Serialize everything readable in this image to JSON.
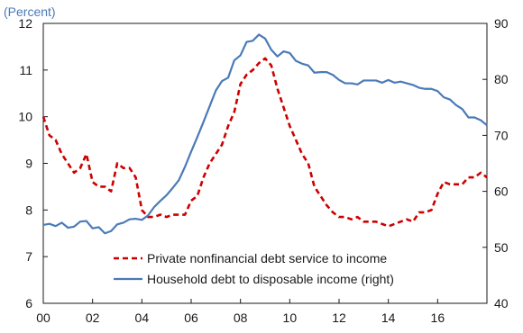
{
  "chart_data": {
    "type": "line",
    "unit_label": "(Percent)",
    "x_range": [
      2000,
      2018
    ],
    "x_ticks": [
      {
        "value": 2000,
        "label": "00"
      },
      {
        "value": 2002,
        "label": "02"
      },
      {
        "value": 2004,
        "label": "04"
      },
      {
        "value": 2006,
        "label": "06"
      },
      {
        "value": 2008,
        "label": "08"
      },
      {
        "value": 2010,
        "label": "10"
      },
      {
        "value": 2012,
        "label": "12"
      },
      {
        "value": 2014,
        "label": "14"
      },
      {
        "value": 2016,
        "label": "16"
      }
    ],
    "y_left": {
      "range": [
        6,
        12
      ],
      "ticks": [
        "6",
        "7",
        "8",
        "9",
        "10",
        "11",
        "12"
      ]
    },
    "y_right": {
      "range": [
        40,
        90
      ],
      "ticks": [
        "40",
        "50",
        "60",
        "70",
        "80",
        "90"
      ]
    },
    "legend": {
      "position": "bottom-center"
    },
    "grid": false,
    "series": [
      {
        "name": "Private nonfinancial debt service to income",
        "axis": "left",
        "color": "#cc0000",
        "style": "dashed",
        "points": [
          [
            2000.0,
            10.0
          ],
          [
            2000.25,
            9.6
          ],
          [
            2000.5,
            9.5
          ],
          [
            2000.75,
            9.2
          ],
          [
            2001.0,
            9.0
          ],
          [
            2001.25,
            8.8
          ],
          [
            2001.5,
            8.9
          ],
          [
            2001.75,
            9.2
          ],
          [
            2002.0,
            8.6
          ],
          [
            2002.25,
            8.5
          ],
          [
            2002.5,
            8.5
          ],
          [
            2002.75,
            8.4
          ],
          [
            2003.0,
            9.0
          ],
          [
            2003.25,
            8.9
          ],
          [
            2003.5,
            8.9
          ],
          [
            2003.75,
            8.7
          ],
          [
            2004.0,
            8.0
          ],
          [
            2004.25,
            7.85
          ],
          [
            2004.5,
            7.85
          ],
          [
            2004.75,
            7.9
          ],
          [
            2005.0,
            7.85
          ],
          [
            2005.25,
            7.9
          ],
          [
            2005.5,
            7.9
          ],
          [
            2005.75,
            7.9
          ],
          [
            2006.0,
            8.2
          ],
          [
            2006.25,
            8.3
          ],
          [
            2006.5,
            8.7
          ],
          [
            2006.75,
            9.0
          ],
          [
            2007.0,
            9.2
          ],
          [
            2007.25,
            9.4
          ],
          [
            2007.5,
            9.8
          ],
          [
            2007.75,
            10.1
          ],
          [
            2008.0,
            10.7
          ],
          [
            2008.25,
            10.9
          ],
          [
            2008.5,
            11.0
          ],
          [
            2008.75,
            11.15
          ],
          [
            2009.0,
            11.25
          ],
          [
            2009.25,
            11.1
          ],
          [
            2009.5,
            10.6
          ],
          [
            2009.75,
            10.2
          ],
          [
            2010.0,
            9.8
          ],
          [
            2010.25,
            9.5
          ],
          [
            2010.5,
            9.2
          ],
          [
            2010.75,
            9.0
          ],
          [
            2011.0,
            8.5
          ],
          [
            2011.25,
            8.3
          ],
          [
            2011.5,
            8.1
          ],
          [
            2011.75,
            7.95
          ],
          [
            2012.0,
            7.85
          ],
          [
            2012.25,
            7.85
          ],
          [
            2012.5,
            7.8
          ],
          [
            2012.75,
            7.85
          ],
          [
            2013.0,
            7.75
          ],
          [
            2013.25,
            7.75
          ],
          [
            2013.5,
            7.75
          ],
          [
            2013.75,
            7.7
          ],
          [
            2014.0,
            7.65
          ],
          [
            2014.25,
            7.7
          ],
          [
            2014.5,
            7.75
          ],
          [
            2014.75,
            7.8
          ],
          [
            2015.0,
            7.75
          ],
          [
            2015.25,
            7.95
          ],
          [
            2015.5,
            7.95
          ],
          [
            2015.75,
            8.0
          ],
          [
            2016.0,
            8.35
          ],
          [
            2016.25,
            8.6
          ],
          [
            2016.5,
            8.55
          ],
          [
            2016.75,
            8.55
          ],
          [
            2017.0,
            8.55
          ],
          [
            2017.25,
            8.7
          ],
          [
            2017.5,
            8.7
          ],
          [
            2017.75,
            8.8
          ],
          [
            2018.0,
            8.7
          ]
        ]
      },
      {
        "name": "Household debt to disposable income (right)",
        "axis": "right",
        "color": "#4a7ab8",
        "style": "solid",
        "points": [
          [
            2000.0,
            54.0
          ],
          [
            2000.25,
            54.2
          ],
          [
            2000.5,
            53.8
          ],
          [
            2000.75,
            54.4
          ],
          [
            2001.0,
            53.5
          ],
          [
            2001.25,
            53.7
          ],
          [
            2001.5,
            54.6
          ],
          [
            2001.75,
            54.7
          ],
          [
            2002.0,
            53.4
          ],
          [
            2002.25,
            53.6
          ],
          [
            2002.5,
            52.5
          ],
          [
            2002.75,
            52.9
          ],
          [
            2003.0,
            54.1
          ],
          [
            2003.25,
            54.4
          ],
          [
            2003.5,
            55.0
          ],
          [
            2003.75,
            55.1
          ],
          [
            2004.0,
            54.9
          ],
          [
            2004.25,
            55.7
          ],
          [
            2004.5,
            57.2
          ],
          [
            2004.75,
            58.3
          ],
          [
            2005.0,
            59.3
          ],
          [
            2005.25,
            60.6
          ],
          [
            2005.5,
            62.0
          ],
          [
            2005.75,
            64.4
          ],
          [
            2006.0,
            67.1
          ],
          [
            2006.25,
            69.7
          ],
          [
            2006.5,
            72.4
          ],
          [
            2006.75,
            75.2
          ],
          [
            2007.0,
            78.0
          ],
          [
            2007.25,
            79.7
          ],
          [
            2007.5,
            80.3
          ],
          [
            2007.75,
            83.4
          ],
          [
            2008.0,
            84.3
          ],
          [
            2008.25,
            86.7
          ],
          [
            2008.5,
            86.9
          ],
          [
            2008.75,
            88.0
          ],
          [
            2009.0,
            87.3
          ],
          [
            2009.25,
            85.3
          ],
          [
            2009.5,
            84.1
          ],
          [
            2009.75,
            85.0
          ],
          [
            2010.0,
            84.7
          ],
          [
            2010.25,
            83.3
          ],
          [
            2010.5,
            82.8
          ],
          [
            2010.75,
            82.5
          ],
          [
            2011.0,
            81.2
          ],
          [
            2011.25,
            81.3
          ],
          [
            2011.5,
            81.3
          ],
          [
            2011.75,
            80.8
          ],
          [
            2012.0,
            79.9
          ],
          [
            2012.25,
            79.3
          ],
          [
            2012.5,
            79.3
          ],
          [
            2012.75,
            79.1
          ],
          [
            2013.0,
            79.8
          ],
          [
            2013.25,
            79.8
          ],
          [
            2013.5,
            79.8
          ],
          [
            2013.75,
            79.4
          ],
          [
            2014.0,
            79.9
          ],
          [
            2014.25,
            79.4
          ],
          [
            2014.5,
            79.6
          ],
          [
            2014.75,
            79.3
          ],
          [
            2015.0,
            79.0
          ],
          [
            2015.25,
            78.5
          ],
          [
            2015.5,
            78.3
          ],
          [
            2015.75,
            78.3
          ],
          [
            2016.0,
            77.9
          ],
          [
            2016.25,
            76.8
          ],
          [
            2016.5,
            76.4
          ],
          [
            2016.75,
            75.4
          ],
          [
            2017.0,
            74.7
          ],
          [
            2017.25,
            73.2
          ],
          [
            2017.5,
            73.2
          ],
          [
            2017.75,
            72.7
          ],
          [
            2018.0,
            71.8
          ]
        ]
      }
    ]
  }
}
